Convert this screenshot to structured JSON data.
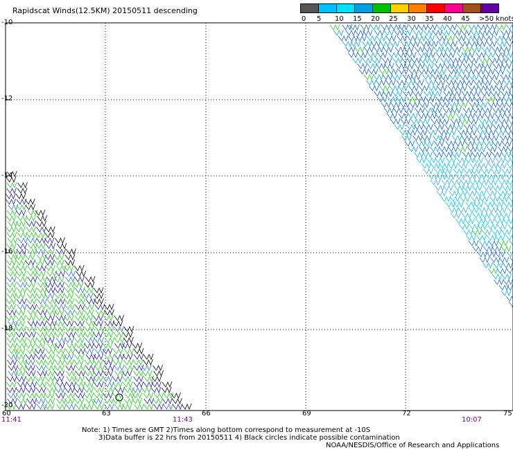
{
  "title": "Rapidscat Winds(12.5KM) 20150511 descending",
  "legend": {
    "labels": [
      "0",
      "5",
      "10",
      "15",
      "20",
      "25",
      "30",
      "35",
      "40",
      "45",
      ">50 knots"
    ],
    "colors": [
      "#555555",
      "#00c0ff",
      "#00e0ff",
      "#00a0e0",
      "#00c000",
      "#ffd000",
      "#ff8000",
      "#ff0000",
      "#ff0090",
      "#a05020",
      "#6000a0"
    ]
  },
  "axes": {
    "lat_labels": [
      "-10",
      "-12",
      "-14",
      "-16",
      "-18",
      "-20"
    ],
    "lon_labels": [
      "60",
      "63",
      "66",
      "69",
      "72",
      "75"
    ]
  },
  "times": {
    "t1": "11:41",
    "t2": "11:43",
    "t3": "10:07"
  },
  "notes": {
    "line1": "Note: 1) Times are GMT 2)Times along bottom correspond to measurement at -10S",
    "line2": "3)Data buffer is 22 hrs from 20150511 4) Black circles indicate possible contamination",
    "line3": "NOAA/NESDIS/Office of Research and Applications"
  }
}
